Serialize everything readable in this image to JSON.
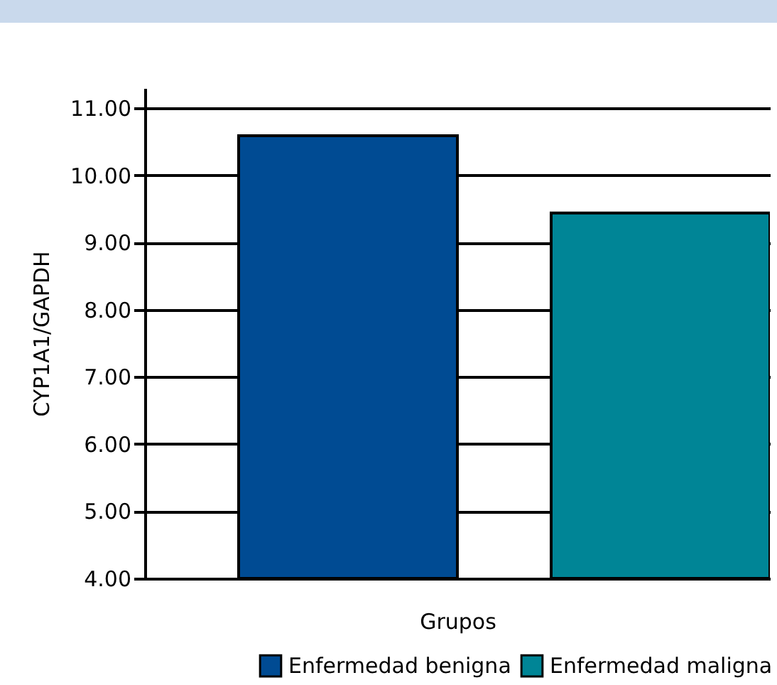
{
  "chart_data": {
    "type": "bar",
    "xlabel": "Grupos",
    "ylabel": "CYP1A1/GAPDH",
    "categories": [
      null
    ],
    "series": [
      {
        "name": "Enfermedad benigna",
        "color": "#004b93",
        "values": [
          10.59
        ]
      },
      {
        "name": "Enfermedad maligna",
        "color": "#008596",
        "values": [
          9.44
        ]
      }
    ],
    "ylim": [
      4,
      11.3
    ],
    "yticks": [
      {
        "value": 4,
        "label": "4.00"
      },
      {
        "value": 5,
        "label": "5.00"
      },
      {
        "value": 6,
        "label": "6.00"
      },
      {
        "value": 7,
        "label": "7.00"
      },
      {
        "value": 8,
        "label": "8.00"
      },
      {
        "value": 9,
        "label": "9.00"
      },
      {
        "value": 10,
        "label": "10.00"
      },
      {
        "value": 11,
        "label": "11.00"
      }
    ],
    "grid": "y",
    "legend": "bottom right"
  }
}
